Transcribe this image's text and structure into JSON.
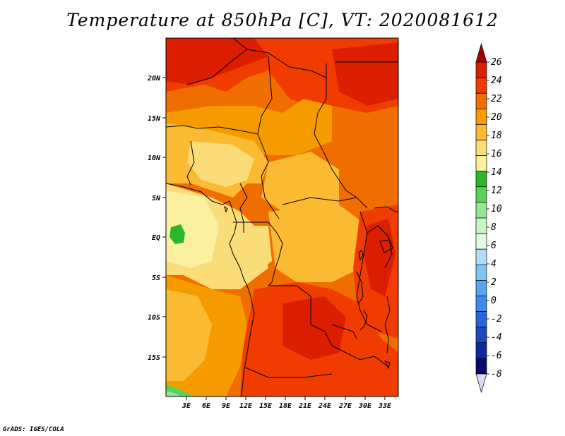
{
  "title": "Temperature at 850hPa [C], VT: 2020081612",
  "credit": "GrADS: IGES/COLA",
  "map": {
    "lat_labels": [
      "20N",
      "15N",
      "10N",
      "5N",
      "EQ",
      "5S",
      "10S",
      "15S"
    ],
    "lon_labels": [
      "3E",
      "6E",
      "9E",
      "12E",
      "15E",
      "18E",
      "21E",
      "24E",
      "27E",
      "30E",
      "33E"
    ]
  },
  "colorbar": {
    "levels": [
      "26",
      "24",
      "22",
      "20",
      "18",
      "16",
      "14",
      "12",
      "10",
      "8",
      "6",
      "4",
      "2",
      "0",
      "-2",
      "-4",
      "-6",
      "-8"
    ],
    "colors": [
      "#a50000",
      "#dc1e00",
      "#f03c00",
      "#f06e00",
      "#f59b00",
      "#faba32",
      "#fadc78",
      "#faf0a0",
      "#2ab82a",
      "#5ad25a",
      "#96e696",
      "#c8f5c8",
      "#e1fae1",
      "#b4dcfa",
      "#82c3f5",
      "#5aa5f0",
      "#3c8cf0",
      "#2864dc",
      "#1e46be",
      "#0f28a0",
      "#0a0a6e",
      "#dcdcf5"
    ]
  }
}
